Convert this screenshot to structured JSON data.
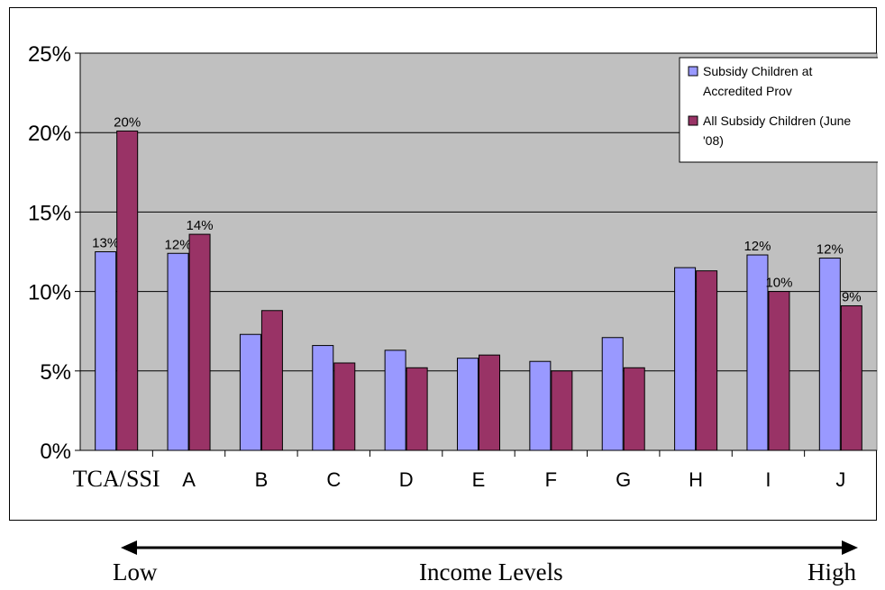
{
  "chart_data": {
    "type": "bar",
    "categories": [
      "TCA/SSI",
      "A",
      "B",
      "C",
      "D",
      "E",
      "F",
      "G",
      "H",
      "I",
      "J"
    ],
    "series": [
      {
        "name": "Subsidy Children at Accredited Prov",
        "color": "#9999ff",
        "values": [
          12.5,
          12.4,
          7.3,
          6.6,
          6.3,
          5.8,
          5.6,
          7.1,
          11.5,
          12.3,
          12.1
        ],
        "labels": [
          "13%",
          "12%",
          "",
          "",
          "",
          "",
          "",
          "",
          "",
          "12%",
          "12%"
        ]
      },
      {
        "name": "All Subsidy Children (June '08)",
        "color": "#993366",
        "values": [
          20.1,
          13.6,
          8.8,
          5.5,
          5.2,
          6.0,
          5.0,
          5.2,
          11.3,
          10.0,
          9.1
        ],
        "labels": [
          "20%",
          "14%",
          "",
          "",
          "",
          "",
          "",
          "",
          "",
          "10%",
          "9%"
        ]
      }
    ],
    "y_ticks": [
      "0%",
      "5%",
      "10%",
      "15%",
      "20%",
      "25%"
    ],
    "ylim": [
      0,
      25
    ],
    "grid": true,
    "legend": {
      "position": "top-right",
      "lines": [
        [
          "Subsidy Children at",
          "Accredited Prov"
        ],
        [
          "All Subsidy Children (June",
          "'08)"
        ]
      ]
    },
    "plot_background": "#c0c0c0"
  },
  "footer": {
    "low_label": "Low",
    "center_label": "Income Levels",
    "high_label": "High"
  }
}
